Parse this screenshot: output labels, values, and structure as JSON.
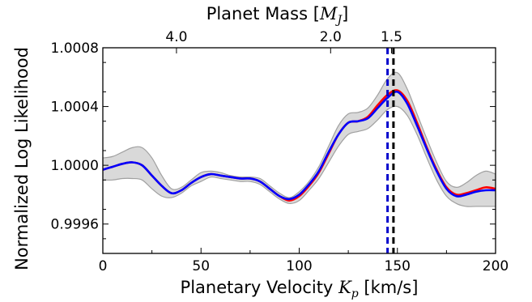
{
  "chart_data": {
    "type": "line",
    "xlabel": "Planetary Velocity",
    "xlabel_symbol": "K",
    "xlabel_subscript": "p",
    "xlabel_unit": "[km/s]",
    "ylabel": "Normalized Log Likelihood",
    "top_xlabel": "Planet Mass",
    "top_xlabel_symbol": "M",
    "top_xlabel_subscript": "J",
    "top_xlabel_open": "[",
    "top_xlabel_close": "]",
    "xlim": [
      0,
      200
    ],
    "ylim": [
      0.9994,
      1.0008
    ],
    "x_ticks": [
      0,
      50,
      100,
      150,
      200
    ],
    "x_tick_labels": [
      "0",
      "50",
      "100",
      "150",
      "200"
    ],
    "y_ticks": [
      0.9996,
      1.0,
      1.0004,
      1.0008
    ],
    "y_tick_labels": [
      "0.9996",
      "1.0000",
      "1.0004",
      "1.0008"
    ],
    "top_ticks": [
      {
        "kp": 37.5,
        "label": "4.0"
      },
      {
        "kp": 116.0,
        "label": "2.0"
      },
      {
        "kp": 147.0,
        "label": "1.5"
      }
    ],
    "grid": false,
    "colors": {
      "series_red": "#ff0000",
      "series_blue": "#0000ff",
      "band_fill": "#d9d9d9",
      "band_edge": "#a0a0a0",
      "vline_blue": "#0000cc",
      "vline_black": "#000000"
    },
    "vlines": [
      {
        "x": 145.0,
        "color": "blue",
        "style": "dashed"
      },
      {
        "x": 148.0,
        "color": "black",
        "style": "dashed"
      }
    ],
    "x": [
      0,
      5,
      10,
      15,
      20,
      25,
      30,
      35,
      40,
      45,
      50,
      55,
      60,
      65,
      70,
      75,
      80,
      85,
      90,
      95,
      100,
      105,
      110,
      115,
      120,
      125,
      130,
      135,
      140,
      145,
      150,
      155,
      160,
      165,
      170,
      175,
      180,
      185,
      190,
      195,
      200
    ],
    "series": [
      {
        "color": "red",
        "values": [
          0.99997,
          0.99999,
          1.00001,
          1.00002,
          1.0,
          0.99993,
          0.99986,
          0.99981,
          0.99983,
          0.99988,
          0.99992,
          0.99994,
          0.99993,
          0.99992,
          0.99991,
          0.99991,
          0.99989,
          0.99984,
          0.99979,
          0.99976,
          0.99979,
          0.99986,
          0.99995,
          1.00008,
          1.00021,
          1.00029,
          1.0003,
          1.00033,
          1.00041,
          1.00048,
          1.00051,
          1.00044,
          1.00029,
          1.00012,
          0.99997,
          0.99985,
          0.9998,
          0.99981,
          0.99983,
          0.99985,
          0.99984
        ]
      },
      {
        "color": "blue",
        "values": [
          0.99997,
          0.99999,
          1.00001,
          1.00002,
          1.0,
          0.99993,
          0.99986,
          0.99981,
          0.99983,
          0.99988,
          0.99992,
          0.99994,
          0.99993,
          0.99992,
          0.99991,
          0.99991,
          0.99989,
          0.99984,
          0.99979,
          0.99977,
          0.9998,
          0.99987,
          0.99996,
          1.00009,
          1.00021,
          1.00029,
          1.0003,
          1.00032,
          1.00039,
          1.00046,
          1.0005,
          1.00042,
          1.00027,
          1.00011,
          0.99996,
          0.99984,
          0.99979,
          0.9998,
          0.99982,
          0.99983,
          0.99983
        ]
      }
    ],
    "band": {
      "upper": [
        1.00005,
        1.00006,
        1.00009,
        1.00012,
        1.00012,
        1.00005,
        0.99993,
        0.99984,
        0.99985,
        0.9999,
        0.99995,
        0.99996,
        0.99995,
        0.99993,
        0.99992,
        0.99992,
        0.99991,
        0.99986,
        0.99981,
        0.99978,
        0.99982,
        0.99989,
        0.99999,
        1.00013,
        1.00027,
        1.00035,
        1.00036,
        1.00039,
        1.00048,
        1.00059,
        1.00063,
        1.00052,
        1.00035,
        1.00018,
        1.00002,
        0.99989,
        0.99985,
        0.99988,
        0.99993,
        0.99996,
        0.99994
      ],
      "lower": [
        0.9999,
        0.9999,
        0.99991,
        0.99991,
        0.9999,
        0.99984,
        0.99979,
        0.99978,
        0.99981,
        0.99986,
        0.99989,
        0.99992,
        0.99991,
        0.9999,
        0.99989,
        0.99989,
        0.99987,
        0.99982,
        0.99977,
        0.99974,
        0.99976,
        0.99983,
        0.99991,
        1.00002,
        1.00013,
        1.00021,
        1.00023,
        1.00025,
        1.00031,
        1.00038,
        1.0004,
        1.00034,
        1.00021,
        1.00005,
        0.9999,
        0.99979,
        0.99974,
        0.99972,
        0.99972,
        0.99972,
        0.99972
      ]
    }
  }
}
